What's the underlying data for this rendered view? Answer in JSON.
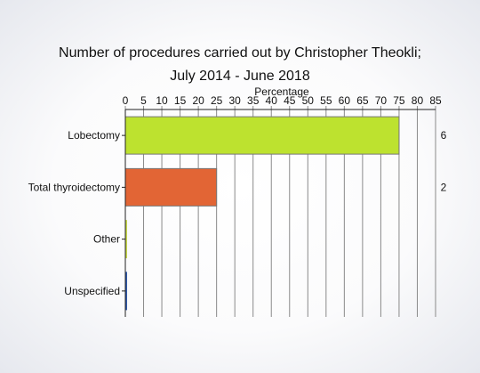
{
  "chart_data": {
    "type": "bar",
    "orientation": "horizontal",
    "title": "Number of procedures carried out by Christopher Theokli;",
    "subtitle": "July 2014 - June 2018",
    "xlabel": "Percentage",
    "ylabel": "",
    "xlim": [
      0,
      85
    ],
    "x_ticks": [
      "0",
      "5",
      "10",
      "15",
      "20",
      "25",
      "30",
      "35",
      "40",
      "45",
      "50",
      "55",
      "60",
      "65",
      "70",
      "75",
      "80",
      "85"
    ],
    "categories": [
      "Lobectomy",
      "Total thyroidectomy",
      "Other",
      "Unspecified"
    ],
    "values": [
      75,
      25,
      0,
      0
    ],
    "counts": [
      "6",
      "2",
      "",
      ""
    ],
    "colors": [
      "#bde22f",
      "#e26535",
      "#c8d84a",
      "#2f58a8"
    ],
    "grid": true,
    "axis_position": "top"
  }
}
